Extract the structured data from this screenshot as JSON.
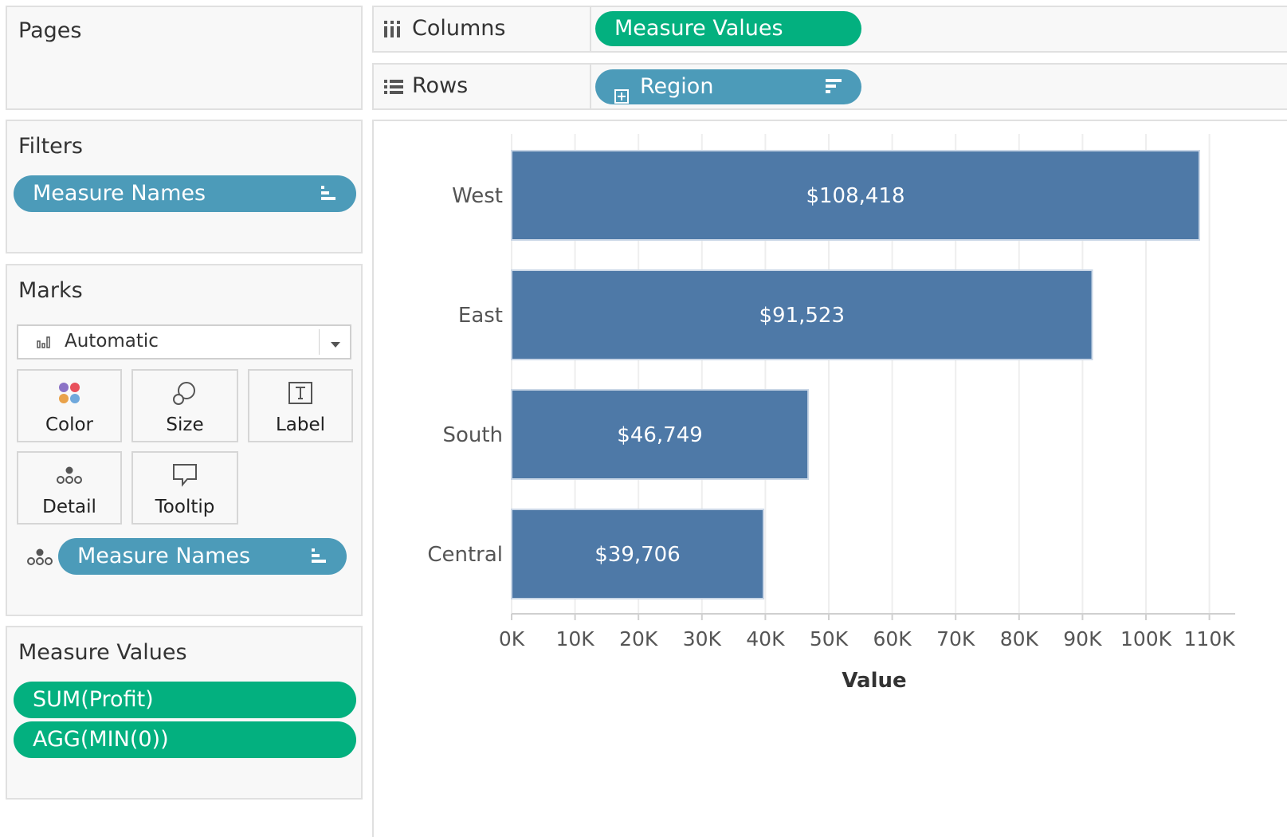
{
  "cards": {
    "pages": {
      "title": "Pages"
    },
    "filters": {
      "title": "Filters",
      "pill": "Measure Names"
    },
    "marks": {
      "title": "Marks",
      "mark_type": "Automatic",
      "buttons": {
        "color": "Color",
        "size": "Size",
        "label": "Label",
        "detail": "Detail",
        "tooltip": "Tooltip"
      },
      "detail_pill": "Measure Names"
    },
    "measure_values": {
      "title": "Measure Values",
      "pills": [
        "SUM(Profit)",
        "AGG(MIN(0))"
      ]
    }
  },
  "shelves": {
    "columns": {
      "label": "Columns",
      "pill": "Measure Values"
    },
    "rows": {
      "label": "Rows",
      "pill": "Region"
    }
  },
  "colors": {
    "bar": "#4e79a7",
    "dimension_pill": "#4c9bb9",
    "measure_pill": "#03b07f"
  },
  "icons": {
    "columns": "columns-icon",
    "rows": "rows-icon",
    "expand": "plus-box-icon",
    "sort": "sort-descending-icon",
    "mark_type": "bar-chart-icon",
    "dropdown": "chevron-down-icon",
    "color": "color-dots-icon",
    "size": "size-circles-icon",
    "label": "text-label-icon",
    "detail": "detail-dots-icon",
    "tooltip": "speech-bubble-icon"
  },
  "chart_data": {
    "type": "bar",
    "orientation": "horizontal",
    "categories": [
      "West",
      "East",
      "South",
      "Central"
    ],
    "values": [
      108418,
      91523,
      46749,
      39706
    ],
    "data_labels": [
      "$108,418",
      "$91,523",
      "$46,749",
      "$39,706"
    ],
    "xlabel": "Value",
    "xlim": [
      0,
      110000
    ],
    "x_ticks": [
      0,
      10000,
      20000,
      30000,
      40000,
      50000,
      60000,
      70000,
      80000,
      90000,
      100000,
      110000
    ],
    "x_tick_labels": [
      "0K",
      "10K",
      "20K",
      "30K",
      "40K",
      "50K",
      "60K",
      "70K",
      "80K",
      "90K",
      "100K",
      "110K"
    ],
    "grid": true
  }
}
